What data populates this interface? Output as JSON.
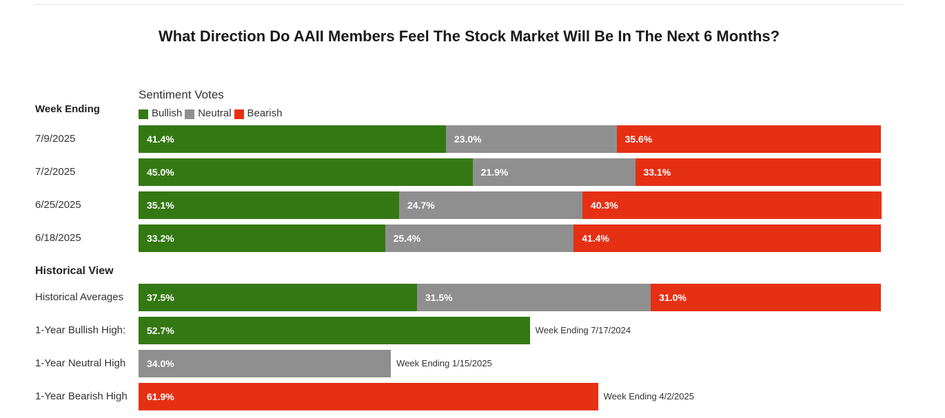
{
  "chart_data": {
    "type": "bar",
    "orientation": "horizontal",
    "stacked": true,
    "title": "What Direction Do AAII Members Feel The Stock Market Will Be In The Next 6 Months?",
    "legend_title": "Sentiment Votes",
    "row_header": "Week Ending",
    "xlim": [
      0,
      100
    ],
    "legend_placement": "top-left",
    "series": [
      {
        "name": "Bullish",
        "color": "#347814"
      },
      {
        "name": "Neutral",
        "color": "#8f8f8f"
      },
      {
        "name": "Bearish",
        "color": "#e53014"
      }
    ],
    "weekly": [
      {
        "label": "7/9/2025",
        "bullish": 41.4,
        "neutral": 23.0,
        "bearish": 35.6,
        "bullish_text": "41.4%",
        "neutral_text": "23.0%",
        "bearish_text": "35.6%"
      },
      {
        "label": "7/2/2025",
        "bullish": 45.0,
        "neutral": 21.9,
        "bearish": 33.1,
        "bullish_text": "45.0%",
        "neutral_text": "21.9%",
        "bearish_text": "33.1%"
      },
      {
        "label": "6/25/2025",
        "bullish": 35.1,
        "neutral": 24.7,
        "bearish": 40.3,
        "bullish_text": "35.1%",
        "neutral_text": "24.7%",
        "bearish_text": "40.3%"
      },
      {
        "label": "6/18/2025",
        "bullish": 33.2,
        "neutral": 25.4,
        "bearish": 41.4,
        "bullish_text": "33.2%",
        "neutral_text": "25.4%",
        "bearish_text": "41.4%"
      }
    ],
    "historical_header": "Historical View",
    "historical": [
      {
        "label": "Historical Averages",
        "bullish": 37.5,
        "neutral": 31.5,
        "bearish": 31.0,
        "bullish_text": "37.5%",
        "neutral_text": "31.5%",
        "bearish_text": "31.0%"
      },
      {
        "label": "1-Year Bullish High:",
        "bullish": 52.7,
        "bullish_text": "52.7%",
        "note": "Week Ending 7/17/2024"
      },
      {
        "label": "1-Year Neutral High",
        "neutral": 34.0,
        "neutral_text": "34.0%",
        "note": "Week Ending 1/15/2025"
      },
      {
        "label": "1-Year Bearish High",
        "bearish": 61.9,
        "bearish_text": "61.9%",
        "note": "Week Ending 4/2/2025"
      }
    ]
  }
}
